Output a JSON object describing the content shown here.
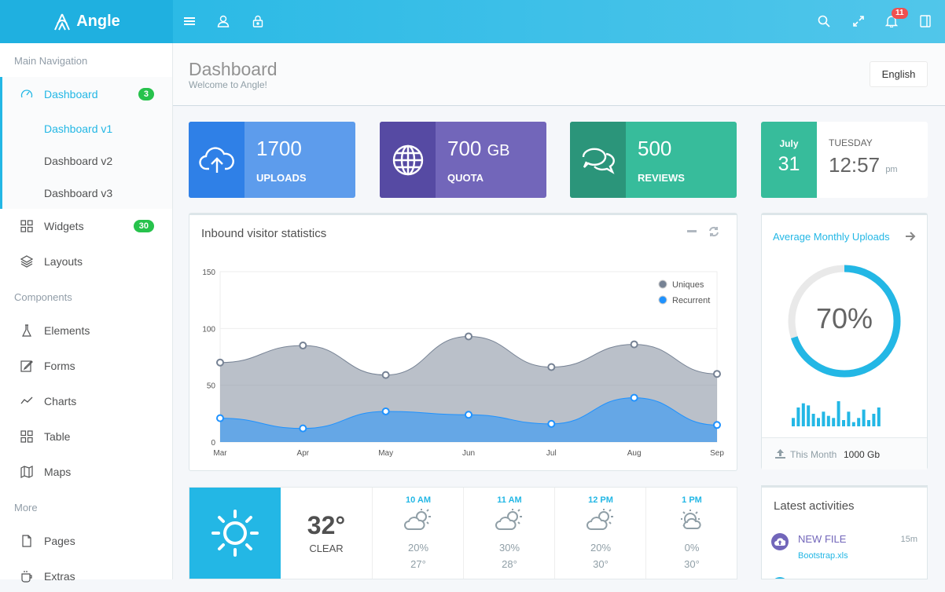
{
  "brand": {
    "name": "Angle"
  },
  "topbar": {
    "notifications_count": "11"
  },
  "sidebar": {
    "headings": [
      "Main Navigation",
      "Components",
      "More"
    ],
    "dashboard": {
      "label": "Dashboard",
      "badge": "3"
    },
    "dashboard_sub": [
      "Dashboard v1",
      "Dashboard v2",
      "Dashboard v3"
    ],
    "widgets": {
      "label": "Widgets",
      "badge": "30"
    },
    "items": [
      "Layouts",
      "Elements",
      "Forms",
      "Charts",
      "Table",
      "Maps",
      "Pages",
      "Extras"
    ]
  },
  "header": {
    "title": "Dashboard",
    "subtitle": "Welcome to Angle!",
    "language": "English"
  },
  "stats": [
    {
      "value": "1700",
      "unit": "",
      "caption": "UPLOADS",
      "color_dark": "#2f80e7",
      "color": "#5d9cec",
      "icon": "cloud-upload-icon"
    },
    {
      "value": "700",
      "unit": "GB",
      "caption": "QUOTA",
      "color_dark": "#564aa3",
      "color": "#7266ba",
      "icon": "globe-icon"
    },
    {
      "value": "500",
      "unit": "",
      "caption": "REVIEWS",
      "color_dark": "#2b957a",
      "color": "#37bc9b",
      "icon": "comments-icon"
    }
  ],
  "date": {
    "month": "July",
    "day": "31",
    "weekday": "TUESDAY",
    "time": "12:57",
    "ampm": "pm"
  },
  "chart_panel": {
    "title": "Inbound visitor statistics"
  },
  "chart_data": {
    "type": "area",
    "categories": [
      "Mar",
      "Apr",
      "May",
      "Jun",
      "Jul",
      "Aug",
      "Sep"
    ],
    "series": [
      {
        "name": "Uniques",
        "color": "#768294",
        "values": [
          70,
          85,
          59,
          93,
          66,
          86,
          60
        ]
      },
      {
        "name": "Recurrent",
        "color": "#1f92fe",
        "values": [
          21,
          12,
          27,
          24,
          16,
          39,
          15
        ]
      }
    ],
    "yticks": [
      0,
      50,
      100,
      150
    ],
    "ylim": [
      0,
      150
    ],
    "legend": "top-right",
    "grid": true
  },
  "uploads_panel": {
    "title": "Average Monthly Uploads",
    "percent": 70,
    "percent_label": "70%",
    "sparkline": [
      4,
      9,
      11,
      10,
      6,
      4,
      7,
      5,
      4,
      12,
      3,
      7,
      2,
      4,
      8,
      3,
      6,
      9
    ],
    "footer_label": "This Month",
    "footer_value": "1000 Gb"
  },
  "weather": {
    "temp": "32°",
    "condition": "CLEAR",
    "hours": [
      {
        "time": "10 AM",
        "pct": "20%",
        "temp": "27°"
      },
      {
        "time": "11 AM",
        "pct": "30%",
        "temp": "28°"
      },
      {
        "time": "12 PM",
        "pct": "20%",
        "temp": "30°"
      },
      {
        "time": "1 PM",
        "pct": "0%",
        "temp": "30°"
      }
    ]
  },
  "activities": {
    "title": "Latest activities",
    "items": [
      {
        "title": "NEW FILE",
        "file": "Bootstrap.xls",
        "time": "15m"
      }
    ]
  },
  "colors": {
    "primary": "#23b7e5",
    "success": "#27c24c",
    "danger": "#f05050"
  }
}
